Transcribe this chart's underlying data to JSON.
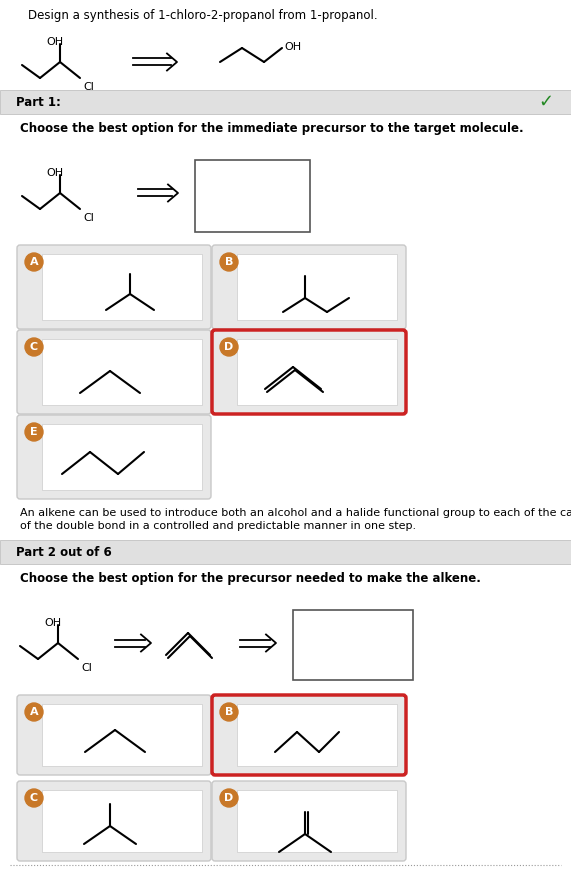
{
  "title": "Design a synthesis of 1-chloro-2-propanol from 1-propanol.",
  "bg_color": "#ffffff",
  "part1_label": "Part 1:",
  "part1_bg": "#e0e0e0",
  "part1_question": "Choose the best option for the immediate precursor to the target molecule.",
  "part2_label": "Part 2 out of 6",
  "part2_bg": "#e0e0e0",
  "part2_question": "Choose the best option for the precursor needed to make the alkene.",
  "explanation_line1": "An alkene can be used to introduce both an alcohol and a halide functional group to each of the carbons",
  "explanation_line2": "of the double bond in a controlled and predictable manner in one step.",
  "option_bg": "#e8e8e8",
  "option_bg_white": "#f5f5f5",
  "option_border_normal": "#c8c8c8",
  "option_border_selected": "#cc2222",
  "badge_color": "#c87828",
  "badge_text_color": "#ffffff",
  "checkmark_color": "#228822",
  "text_color": "#000000"
}
